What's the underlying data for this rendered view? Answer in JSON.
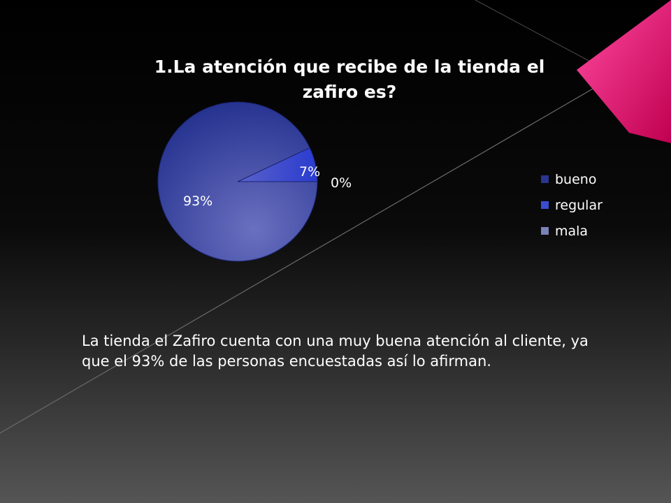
{
  "chart_data": {
    "type": "pie",
    "title": "1.La atención que recibe de la tienda el zafiro es?",
    "categories": [
      "bueno",
      "regular",
      "mala"
    ],
    "values": [
      93,
      7,
      0
    ],
    "data_labels": [
      "93%",
      "7%",
      "0%"
    ],
    "legend": [
      "bueno",
      "regular",
      "mala"
    ],
    "legend_position": "right",
    "colors": [
      "#2a3590",
      "#3a4cd0",
      "#7a82b8"
    ]
  },
  "slide": {
    "accent_color": "#e8196e",
    "conclusion": "La tienda el Zafiro cuenta con una muy buena atención al cliente, ya que el 93% de las personas encuestadas así lo afirman."
  }
}
